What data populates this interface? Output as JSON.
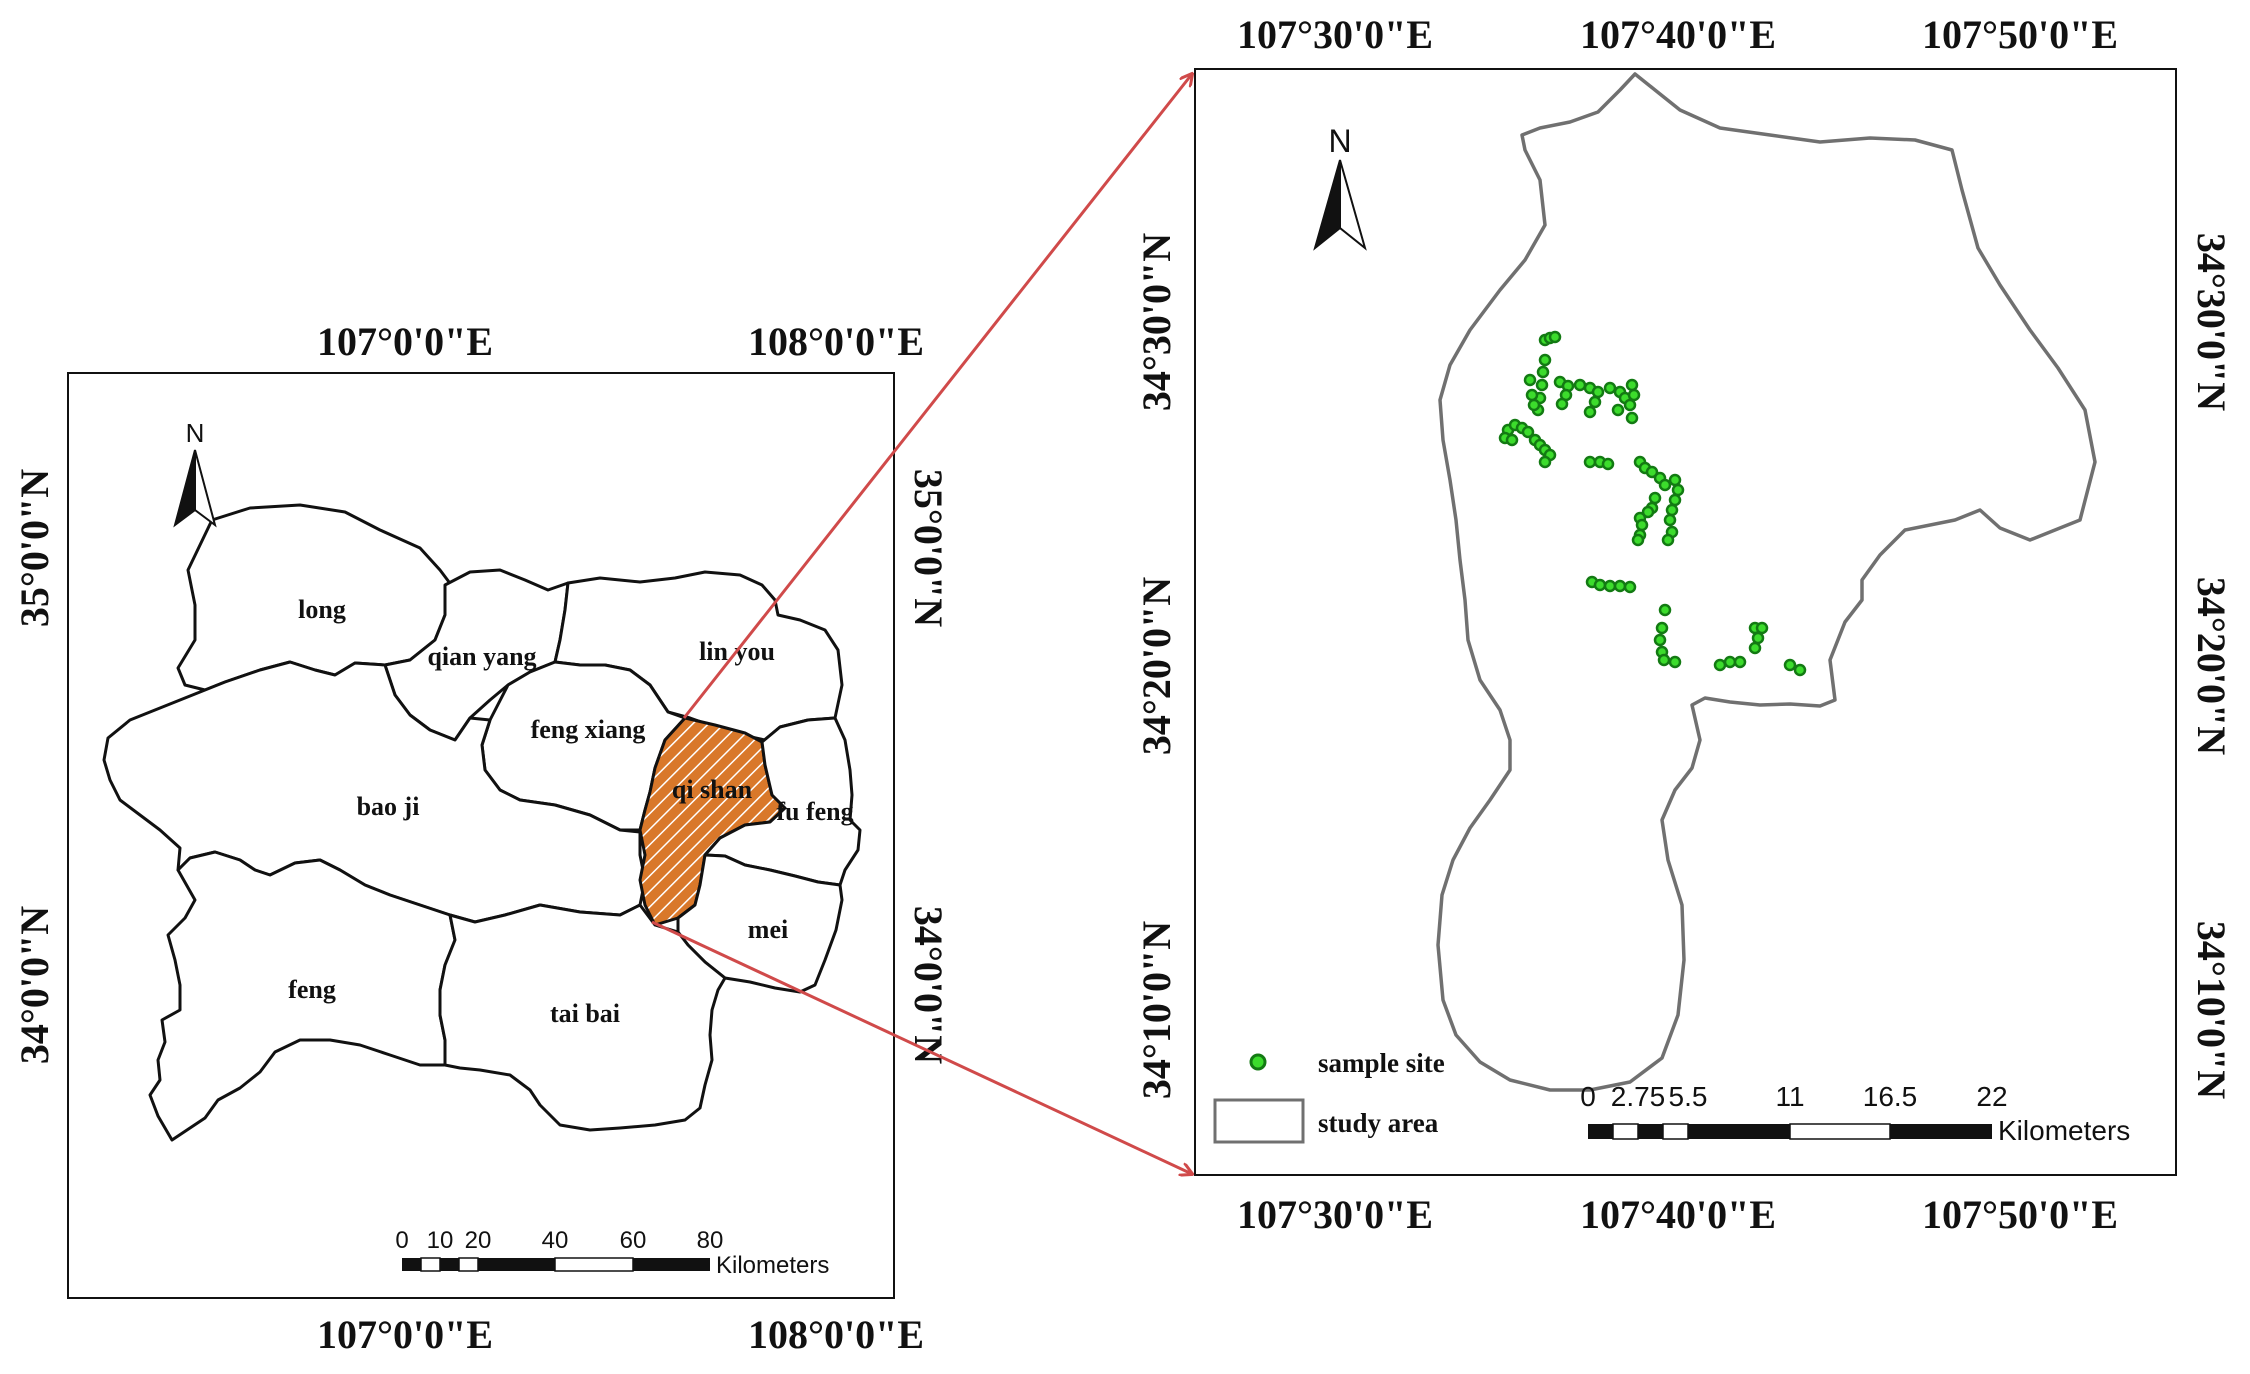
{
  "colors": {
    "highlight_fill": "#d9782a",
    "highlight_hatch": "#ffffff",
    "connector": "#d04a4a",
    "sample_fill": "#3cdc2c",
    "sample_stroke": "#137a13",
    "study_area_stroke": "#707070"
  },
  "left_map": {
    "top_lon_labels": [
      "107°0'0\"E",
      "108°0'0\"E"
    ],
    "bottom_lon_labels": [
      "107°0'0\"E",
      "108°0'0\"E"
    ],
    "left_lat_labels": [
      "35°0'0\"N",
      "34°0'0\"N"
    ],
    "right_lat_labels": [
      "35°0'0\"N",
      "34°0'0\"N"
    ],
    "north_label": "N",
    "regions": [
      "long",
      "qian yang",
      "lin you",
      "feng xiang",
      "qi shan",
      "bao ji",
      "fu feng",
      "mei",
      "feng",
      "tai bai"
    ],
    "highlighted_region": "qi shan",
    "scale_ticks": [
      "0",
      "10",
      "20",
      "40",
      "60",
      "80"
    ],
    "scale_unit": "Kilometers"
  },
  "right_map": {
    "top_lon_labels": [
      "107°30'0\"E",
      "107°40'0\"E",
      "107°50'0\"E"
    ],
    "bottom_lon_labels": [
      "107°30'0\"E",
      "107°40'0\"E",
      "107°50'0\"E"
    ],
    "left_lat_labels": [
      "34°30'0\"N",
      "34°20'0\"N",
      "34°10'0\"N"
    ],
    "right_lat_labels": [
      "34°30'0\"N",
      "34°20'0\"N",
      "34°10'0\"N"
    ],
    "north_label": "N",
    "legend": {
      "sample_site": "sample site",
      "study_area": "study area"
    },
    "scale_ticks": [
      "0",
      "2.75",
      "5.5",
      "11",
      "16.5",
      "22"
    ],
    "scale_unit": "Kilometers"
  }
}
